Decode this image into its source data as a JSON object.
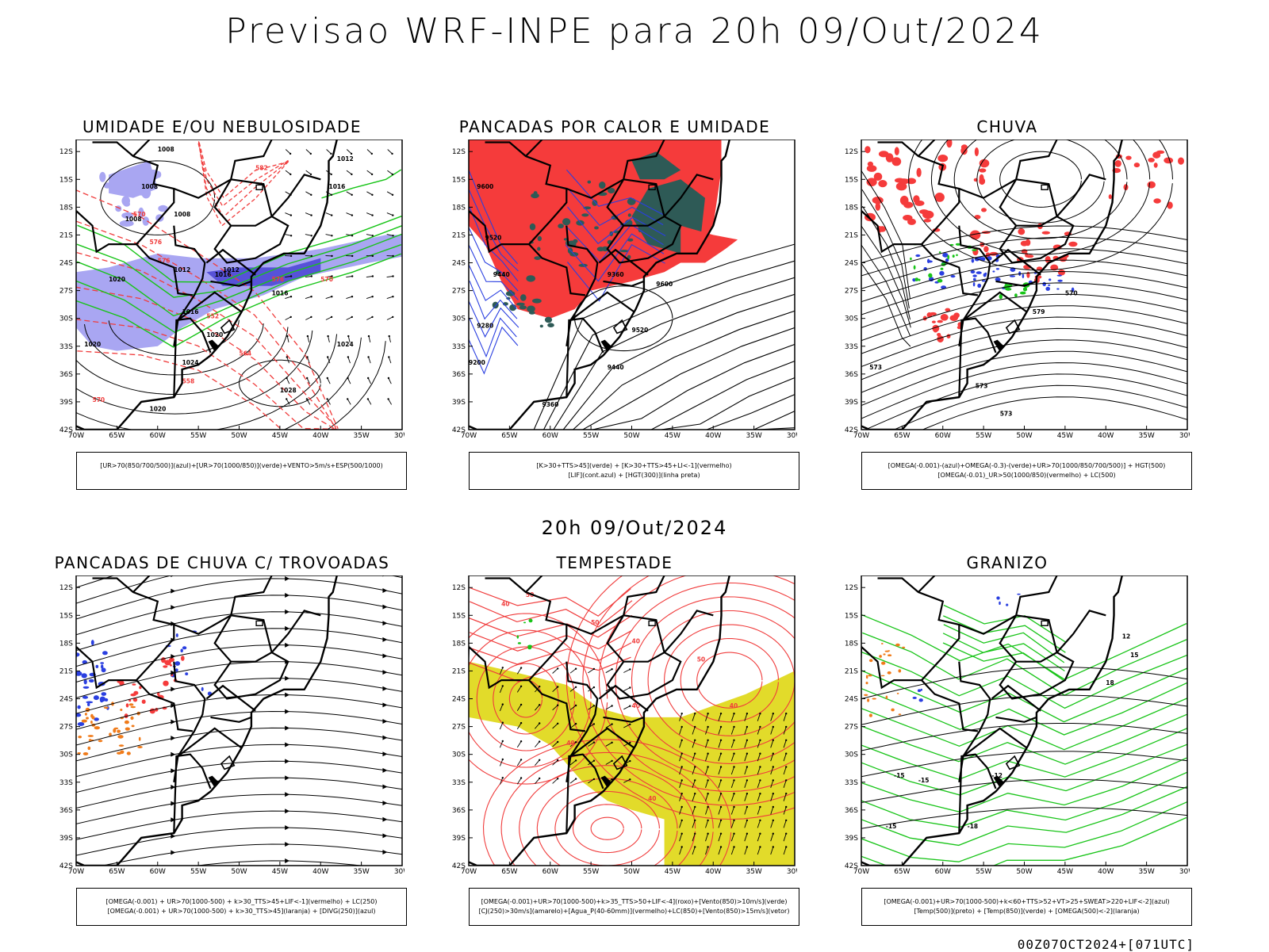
{
  "title": "Previsao WRF-INPE  para 20h 09/Out/2024",
  "mid_title": "20h 09/Out/2024",
  "footer": "00Z07OCT2024+[071UTC]",
  "y_ticks": [
    "12S",
    "15S",
    "18S",
    "21S",
    "24S",
    "27S",
    "30S",
    "33S",
    "36S",
    "39S",
    "42S"
  ],
  "x_ticks": [
    "70W",
    "65W",
    "60W",
    "55W",
    "50W",
    "45W",
    "40W",
    "35W",
    "30W"
  ],
  "colors": {
    "blue_shade": "#a9a6f2",
    "green_line": "#18c418",
    "red_line": "#f03c3c",
    "red_fill": "#f53b3b",
    "dark_green_fill": "#2e5a56",
    "blue_line": "#2a3fe0",
    "yellow_fill": "#e2db2a",
    "orange": "#f07b1a"
  },
  "panels": [
    {
      "title": "UMIDADE E/OU NEBULOSIDADE",
      "legend": [
        "[UR>70(850/700/500)](azul)+[UR>70(1000/850)](verde)+VENTO>5m/s+ESP(500/1000)"
      ],
      "contour_labels": [
        "1008",
        "1012",
        "1008",
        "1016",
        "1008",
        "1008",
        "1012",
        "1016",
        "1020",
        "1016",
        "1020",
        "1016",
        "1020",
        "1024",
        "1024",
        "1028",
        "1020",
        "1012",
        "570",
        "576",
        "582",
        "576",
        "570",
        "564",
        "558",
        "552",
        "576",
        "570"
      ]
    },
    {
      "title": "PANCADAS POR CALOR E UMIDADE",
      "legend": [
        "[K>30+TTS>45](verde) + [K>30+TTS>45+LI<-1](vermelho)",
        "[LIF](cont.azul) + [HGT(300)](linha preta)"
      ],
      "contour_labels": [
        "9600",
        "9520",
        "9440",
        "9360",
        "9600",
        "9520",
        "9440",
        "9360",
        "9280",
        "9200"
      ]
    },
    {
      "title": "CHUVA",
      "legend": [
        "[OMEGA(-0.001)-(azul)+OMEGA(-0.3)-(verde)+UR>70(1000/850/700/500)] + HGT(500)",
        "[OMEGA(-0.01)_UR>50(1000/850)(vermelho) + LC(500)"
      ],
      "contour_labels": [
        "579",
        "573",
        "573",
        "573",
        "570"
      ]
    },
    {
      "title": "PANCADAS DE CHUVA C/ TROVOADAS",
      "legend": [
        "[OMEGA(-0.001) + UR>70(1000-500) + k>30_TTS>45+LIF<-1](vermelho) + LC(250)",
        "[OMEGA(-0.001) + UR>70(1000-500) + k>30_TTS>45](laranja) + [DIVG(250)](azul)"
      ],
      "contour_labels": []
    },
    {
      "title": "TEMPESTADE",
      "legend": [
        "[OMEGA(-0.001)+UR>70(1000-500)+k>35_TTS>50+LIF<-4](roxo)+[Vento(850)>10m/s](verde)",
        "[CJ(250)>30m/s](amarelo)+[Agua_P(40-60mm)](vermelho)+LC(850)+[Vento(850)>15m/s](vetor)"
      ],
      "contour_labels": [
        "50",
        "40",
        "50",
        "40",
        "50",
        "40",
        "40",
        "40",
        "40"
      ]
    },
    {
      "title": "GRANIZO",
      "legend": [
        "[OMEGA(-0.001)+UR>70(1000-500)+k<60+TTS>52+VT>25+SWEAT>220+LIF<-2](azul)",
        "[Temp(500)](preto) + [Temp(850)](verde) + [OMEGA(500)<-2](laranja)"
      ],
      "contour_labels": [
        "12",
        "15",
        "18",
        "-12",
        "-15",
        "-15",
        "-18",
        "-15"
      ]
    }
  ]
}
